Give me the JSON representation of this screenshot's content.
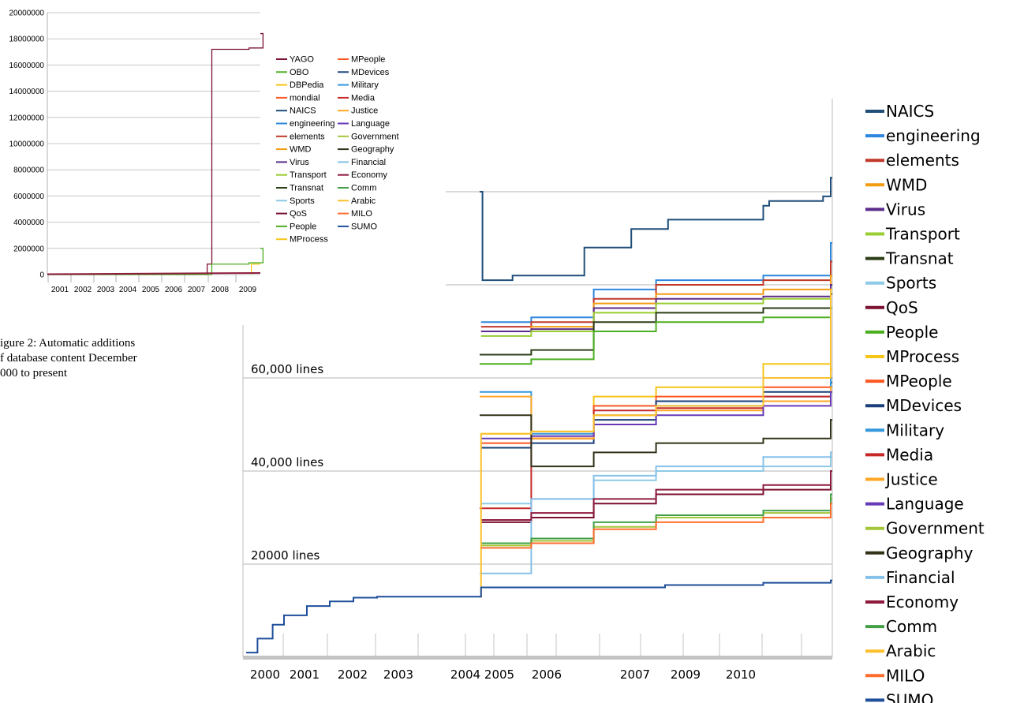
{
  "small_chart_data": {
    "type": "line",
    "ytick_labels": [
      "20000000",
      "18000000",
      "16000000",
      "14000000",
      "12000000",
      "10000000",
      "8000000",
      "6000000",
      "4000000",
      "2000000",
      "0"
    ],
    "xtick_labels": [
      "2001",
      "2002",
      "2003",
      "2004",
      "2005",
      "2006",
      "2007",
      "2008",
      "2009"
    ],
    "legend": [
      "YAGO",
      "OBO",
      "DBPedia",
      "mondial",
      "NAICS",
      "engineering",
      "elements",
      "WMD",
      "Virus",
      "Transport",
      "Transnat",
      "Sports",
      "QoS",
      "People",
      "MProcess",
      "MPeople",
      "MDevices",
      "Military",
      "Media",
      "Justice",
      "Language",
      "Government",
      "Geography",
      "Financial",
      "Economy",
      "Comm",
      "Arabic",
      "MILO",
      "SUMO"
    ]
  },
  "caption": [
    "igure 2: Automatic additions",
    "f database content December",
    "000 to present"
  ],
  "chart_data": {
    "type": "line",
    "step": true,
    "xtick_labels": [
      "2000",
      "2001",
      "2002",
      "2003",
      "2004",
      "2005",
      "2006",
      "2007",
      "2009",
      "2010"
    ],
    "gridline_labels": [
      "60,000 lines",
      "40,000 lines",
      "20000 lines"
    ],
    "gridline_values": [
      60000,
      40000,
      20000
    ],
    "extra_gridlines": [
      80000,
      100000
    ],
    "ylim": [
      0,
      120000
    ],
    "legend_position": "right",
    "series": [
      {
        "name": "NAICS",
        "color": "#1f4e79",
        "points": [
          [
            2004.5,
            100000
          ],
          [
            2004.6,
            81000
          ],
          [
            2005.3,
            82000
          ],
          [
            2006.3,
            88000
          ],
          [
            2006.8,
            92000
          ],
          [
            2007.6,
            94000
          ],
          [
            2009.9,
            97000
          ],
          [
            2010.0,
            98000
          ],
          [
            2010.7,
            99000
          ],
          [
            2010.8,
            103000
          ]
        ]
      },
      {
        "name": "engineering",
        "color": "#2e86de",
        "points": [
          [
            2004.55,
            72000
          ],
          [
            2005.6,
            73000
          ],
          [
            2006.4,
            79000
          ],
          [
            2007.2,
            81000
          ],
          [
            2009.9,
            82000
          ],
          [
            2010.8,
            89000
          ]
        ]
      },
      {
        "name": "elements",
        "color": "#c0392b",
        "points": [
          [
            2004.55,
            71000
          ],
          [
            2005.6,
            72000
          ],
          [
            2006.4,
            77000
          ],
          [
            2007.2,
            80000
          ],
          [
            2009.9,
            81000
          ],
          [
            2010.8,
            85000
          ]
        ]
      },
      {
        "name": "WMD",
        "color": "#f39c12",
        "points": [
          [
            2004.55,
            70000
          ],
          [
            2005.6,
            71000
          ],
          [
            2006.4,
            76000
          ],
          [
            2007.2,
            78000
          ],
          [
            2009.9,
            79000
          ],
          [
            2010.8,
            82000
          ]
        ]
      },
      {
        "name": "Virus",
        "color": "#5b2c8a",
        "points": [
          [
            2004.55,
            70000
          ],
          [
            2005.6,
            70500
          ],
          [
            2006.4,
            75000
          ],
          [
            2007.2,
            77000
          ],
          [
            2009.9,
            77500
          ],
          [
            2010.8,
            80000
          ]
        ]
      },
      {
        "name": "Transport",
        "color": "#9acd32",
        "points": [
          [
            2004.55,
            69000
          ],
          [
            2005.6,
            70000
          ],
          [
            2006.4,
            74000
          ],
          [
            2007.2,
            76000
          ],
          [
            2009.9,
            77000
          ],
          [
            2010.8,
            79000
          ]
        ]
      },
      {
        "name": "Transnat",
        "color": "#2c3e17",
        "points": [
          [
            2004.5,
            65000
          ],
          [
            2005.6,
            66000
          ],
          [
            2006.4,
            72000
          ],
          [
            2007.2,
            74000
          ],
          [
            2009.9,
            75000
          ],
          [
            2010.8,
            78000
          ]
        ]
      },
      {
        "name": "Sports",
        "color": "#8ecae6",
        "points": [
          [
            2004.55,
            33000
          ],
          [
            2005.6,
            34000
          ],
          [
            2006.4,
            38000
          ],
          [
            2007.2,
            40000
          ],
          [
            2009.9,
            41000
          ],
          [
            2010.8,
            43000
          ]
        ]
      },
      {
        "name": "QoS",
        "color": "#7b1030",
        "points": [
          [
            2004.55,
            29000
          ],
          [
            2005.6,
            30000
          ],
          [
            2006.4,
            33000
          ],
          [
            2007.2,
            35000
          ],
          [
            2009.9,
            36000
          ],
          [
            2010.8,
            40000
          ]
        ]
      },
      {
        "name": "People",
        "color": "#4caf20",
        "points": [
          [
            2004.5,
            63000
          ],
          [
            2005.6,
            64000
          ],
          [
            2006.4,
            70000
          ],
          [
            2007.2,
            72000
          ],
          [
            2009.9,
            73000
          ],
          [
            2010.8,
            75000
          ]
        ]
      },
      {
        "name": "MProcess",
        "color": "#f5c518",
        "points": [
          [
            2004.55,
            48000
          ],
          [
            2005.6,
            48500
          ],
          [
            2006.4,
            56000
          ],
          [
            2007.2,
            58000
          ],
          [
            2009.9,
            63000
          ],
          [
            2010.8,
            62000
          ]
        ]
      },
      {
        "name": "MPeople",
        "color": "#ff5722",
        "points": [
          [
            2004.55,
            46000
          ],
          [
            2005.6,
            47000
          ],
          [
            2006.4,
            54000
          ],
          [
            2007.2,
            56000
          ],
          [
            2009.9,
            58000
          ],
          [
            2010.8,
            60000
          ]
        ]
      },
      {
        "name": "MDevices",
        "color": "#1a3f7a",
        "points": [
          [
            2004.55,
            45000
          ],
          [
            2005.6,
            46000
          ],
          [
            2006.4,
            51000
          ],
          [
            2007.2,
            55000
          ],
          [
            2009.9,
            57000
          ],
          [
            2010.8,
            59000
          ]
        ]
      },
      {
        "name": "Military",
        "color": "#3498db",
        "points": [
          [
            2004.5,
            57000
          ],
          [
            2005.6,
            48000
          ],
          [
            2006.4,
            52000
          ],
          [
            2007.2,
            54000
          ],
          [
            2009.9,
            56000
          ],
          [
            2010.8,
            60000
          ]
        ]
      },
      {
        "name": "Media",
        "color": "#c62828",
        "points": [
          [
            2004.5,
            32000
          ],
          [
            2005.6,
            47000
          ],
          [
            2006.4,
            53000
          ],
          [
            2007.2,
            53500
          ],
          [
            2009.9,
            56000
          ],
          [
            2010.8,
            58000
          ]
        ]
      },
      {
        "name": "Justice",
        "color": "#ffa726",
        "points": [
          [
            2004.5,
            56000
          ],
          [
            2005.6,
            47000
          ],
          [
            2006.4,
            52000
          ],
          [
            2007.2,
            53000
          ],
          [
            2009.9,
            55000
          ],
          [
            2010.8,
            58000
          ]
        ]
      },
      {
        "name": "Language",
        "color": "#673ab7",
        "points": [
          [
            2004.55,
            47000
          ],
          [
            2005.6,
            47500
          ],
          [
            2006.4,
            50000
          ],
          [
            2007.2,
            52000
          ],
          [
            2009.9,
            54000
          ],
          [
            2010.8,
            57000
          ]
        ]
      },
      {
        "name": "Government",
        "color": "#a4c639",
        "points": [
          [
            2004.55,
            24000
          ],
          [
            2005.6,
            25000
          ],
          [
            2006.4,
            28000
          ],
          [
            2007.2,
            30000
          ],
          [
            2009.9,
            31000
          ],
          [
            2010.8,
            34000
          ]
        ]
      },
      {
        "name": "Geography",
        "color": "#33331a",
        "points": [
          [
            2004.5,
            52000
          ],
          [
            2005.6,
            41000
          ],
          [
            2006.4,
            44000
          ],
          [
            2007.2,
            46000
          ],
          [
            2009.9,
            47000
          ],
          [
            2010.8,
            51000
          ]
        ]
      },
      {
        "name": "Financial",
        "color": "#85c1e9",
        "points": [
          [
            2004.5,
            18000
          ],
          [
            2005.6,
            34000
          ],
          [
            2006.4,
            39000
          ],
          [
            2007.2,
            41000
          ],
          [
            2009.9,
            43000
          ],
          [
            2010.8,
            44000
          ]
        ]
      },
      {
        "name": "Economy",
        "color": "#8e1b3e",
        "points": [
          [
            2004.55,
            29500
          ],
          [
            2005.6,
            31000
          ],
          [
            2006.4,
            34000
          ],
          [
            2007.2,
            36000
          ],
          [
            2009.9,
            37000
          ],
          [
            2010.8,
            40000
          ]
        ]
      },
      {
        "name": "Comm",
        "color": "#43a047",
        "points": [
          [
            2004.55,
            24500
          ],
          [
            2005.6,
            25500
          ],
          [
            2006.4,
            29000
          ],
          [
            2007.2,
            30500
          ],
          [
            2009.9,
            31500
          ],
          [
            2010.8,
            35000
          ]
        ]
      },
      {
        "name": "Arabic",
        "color": "#fbc02d",
        "points": [
          [
            2004.5,
            13000
          ],
          [
            2004.55,
            48000
          ],
          [
            2005.6,
            48500
          ],
          [
            2006.4,
            52000
          ],
          [
            2007.2,
            54000
          ],
          [
            2009.9,
            60000
          ],
          [
            2010.8,
            79000
          ]
        ]
      },
      {
        "name": "MILO",
        "color": "#ff6d2e",
        "points": [
          [
            2004.55,
            23500
          ],
          [
            2005.6,
            24500
          ],
          [
            2006.4,
            27500
          ],
          [
            2007.2,
            29000
          ],
          [
            2009.9,
            30000
          ],
          [
            2010.8,
            33000
          ]
        ]
      },
      {
        "name": "SUMO",
        "color": "#1f4e9a",
        "points": [
          [
            2000.0,
            1000
          ],
          [
            2000.3,
            4000
          ],
          [
            2000.7,
            7000
          ],
          [
            2001.0,
            9000
          ],
          [
            2001.5,
            11000
          ],
          [
            2002.0,
            12000
          ],
          [
            2002.5,
            12800
          ],
          [
            2003.0,
            13000
          ],
          [
            2004.5,
            13000
          ],
          [
            2004.55,
            15000
          ],
          [
            2006.0,
            15000
          ],
          [
            2007.5,
            15500
          ],
          [
            2009.9,
            16000
          ],
          [
            2010.8,
            16500
          ]
        ]
      }
    ]
  }
}
